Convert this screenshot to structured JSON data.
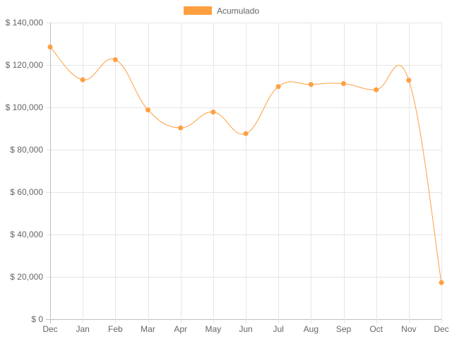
{
  "chart_data": {
    "type": "line",
    "title": "",
    "xlabel": "",
    "ylabel": "",
    "categories": [
      "Dec",
      "Jan",
      "Feb",
      "Mar",
      "Apr",
      "May",
      "Jun",
      "Jul",
      "Aug",
      "Sep",
      "Oct",
      "Nov",
      "Dec"
    ],
    "series": [
      {
        "name": "Acumulado",
        "color": "#ff9f40",
        "values": [
          128500,
          113000,
          122500,
          98800,
          90300,
          97800,
          87600,
          109800,
          110800,
          111200,
          108300,
          112800,
          17300
        ]
      }
    ],
    "ylim": [
      0,
      140000
    ],
    "y_ticks": [
      0,
      20000,
      40000,
      60000,
      80000,
      100000,
      120000,
      140000
    ],
    "y_tick_labels": [
      "$ 0",
      "$ 20,000",
      "$ 40,000",
      "$ 60,000",
      "$ 80,000",
      "$ 100,000",
      "$ 120,000",
      "$ 140,000"
    ],
    "grid": true,
    "legend_position": "top",
    "curve": "smooth"
  }
}
